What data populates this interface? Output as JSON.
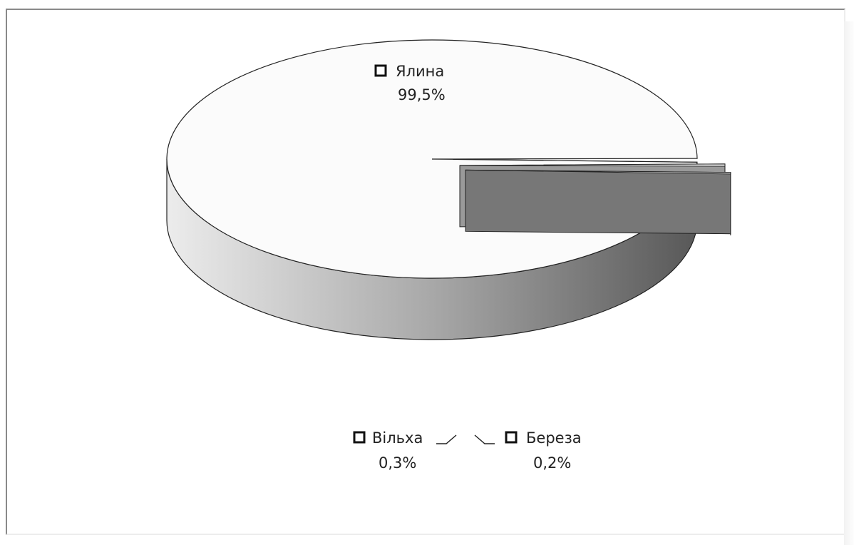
{
  "chart_data": {
    "type": "pie",
    "three_d": true,
    "title": "",
    "legend": "none",
    "slices": [
      {
        "name": "Ялина",
        "value": 99.5,
        "label": "99,5%"
      },
      {
        "name": "Вільха",
        "value": 0.3,
        "label": "0,3%"
      },
      {
        "name": "Береза",
        "value": 0.2,
        "label": "0,2%"
      }
    ],
    "colors": {
      "top_face": "#fbfbfb",
      "side_light": "#e2e2e2",
      "side_dark": "#5a5a5a",
      "outline": "#222222"
    }
  }
}
